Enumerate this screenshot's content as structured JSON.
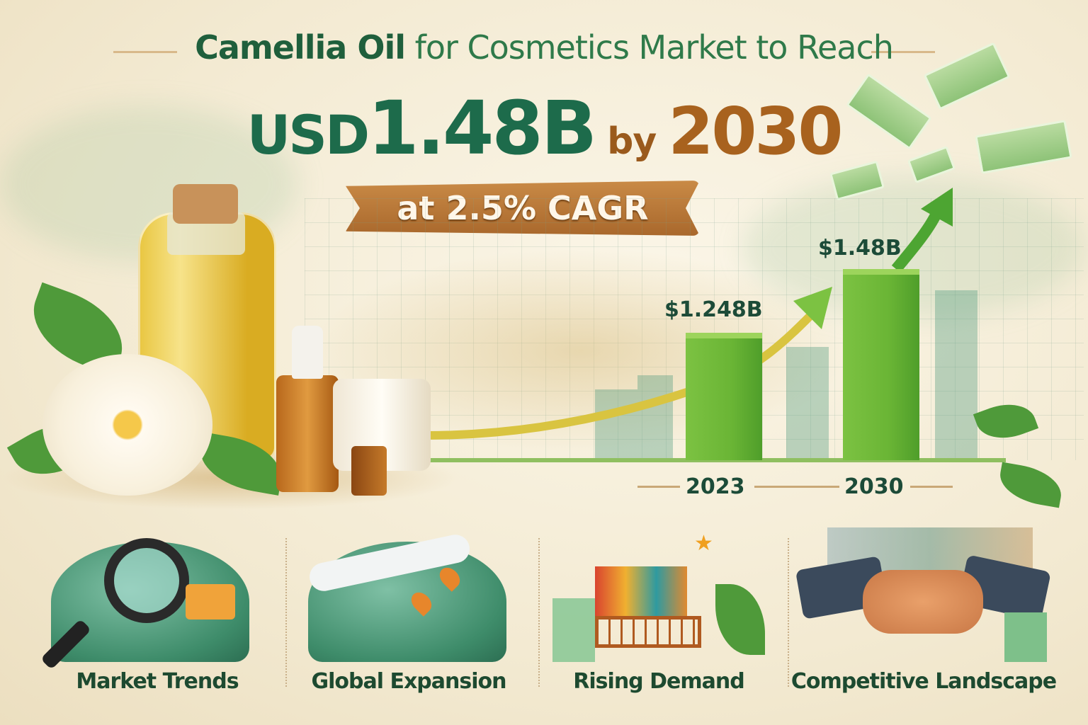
{
  "header": {
    "line1_bold": "Camellia Oil",
    "line1_rest": " for Cosmetics Market to Reach",
    "currency": "USD",
    "value": "1.48B",
    "by": " by ",
    "year": "2030",
    "cagr": "at 2.5% CAGR"
  },
  "chart": {
    "bars": [
      {
        "year": "2023",
        "label": "$1.248B",
        "value": 1.248
      },
      {
        "year": "2030",
        "label": "$1.48B",
        "value": 1.48
      }
    ]
  },
  "colors": {
    "primary_green": "#1d6b4b",
    "brown": "#a8621e",
    "bar_green": "#6ab535"
  },
  "categories": [
    {
      "label": "Market Trends",
      "icon": "magnifier-globe-icon"
    },
    {
      "label": "Global Expansion",
      "icon": "airplane-globe-icon"
    },
    {
      "label": "Rising Demand",
      "icon": "shopping-cart-icon"
    },
    {
      "label": "Competitive Landscape",
      "icon": "handshake-icon"
    }
  ]
}
